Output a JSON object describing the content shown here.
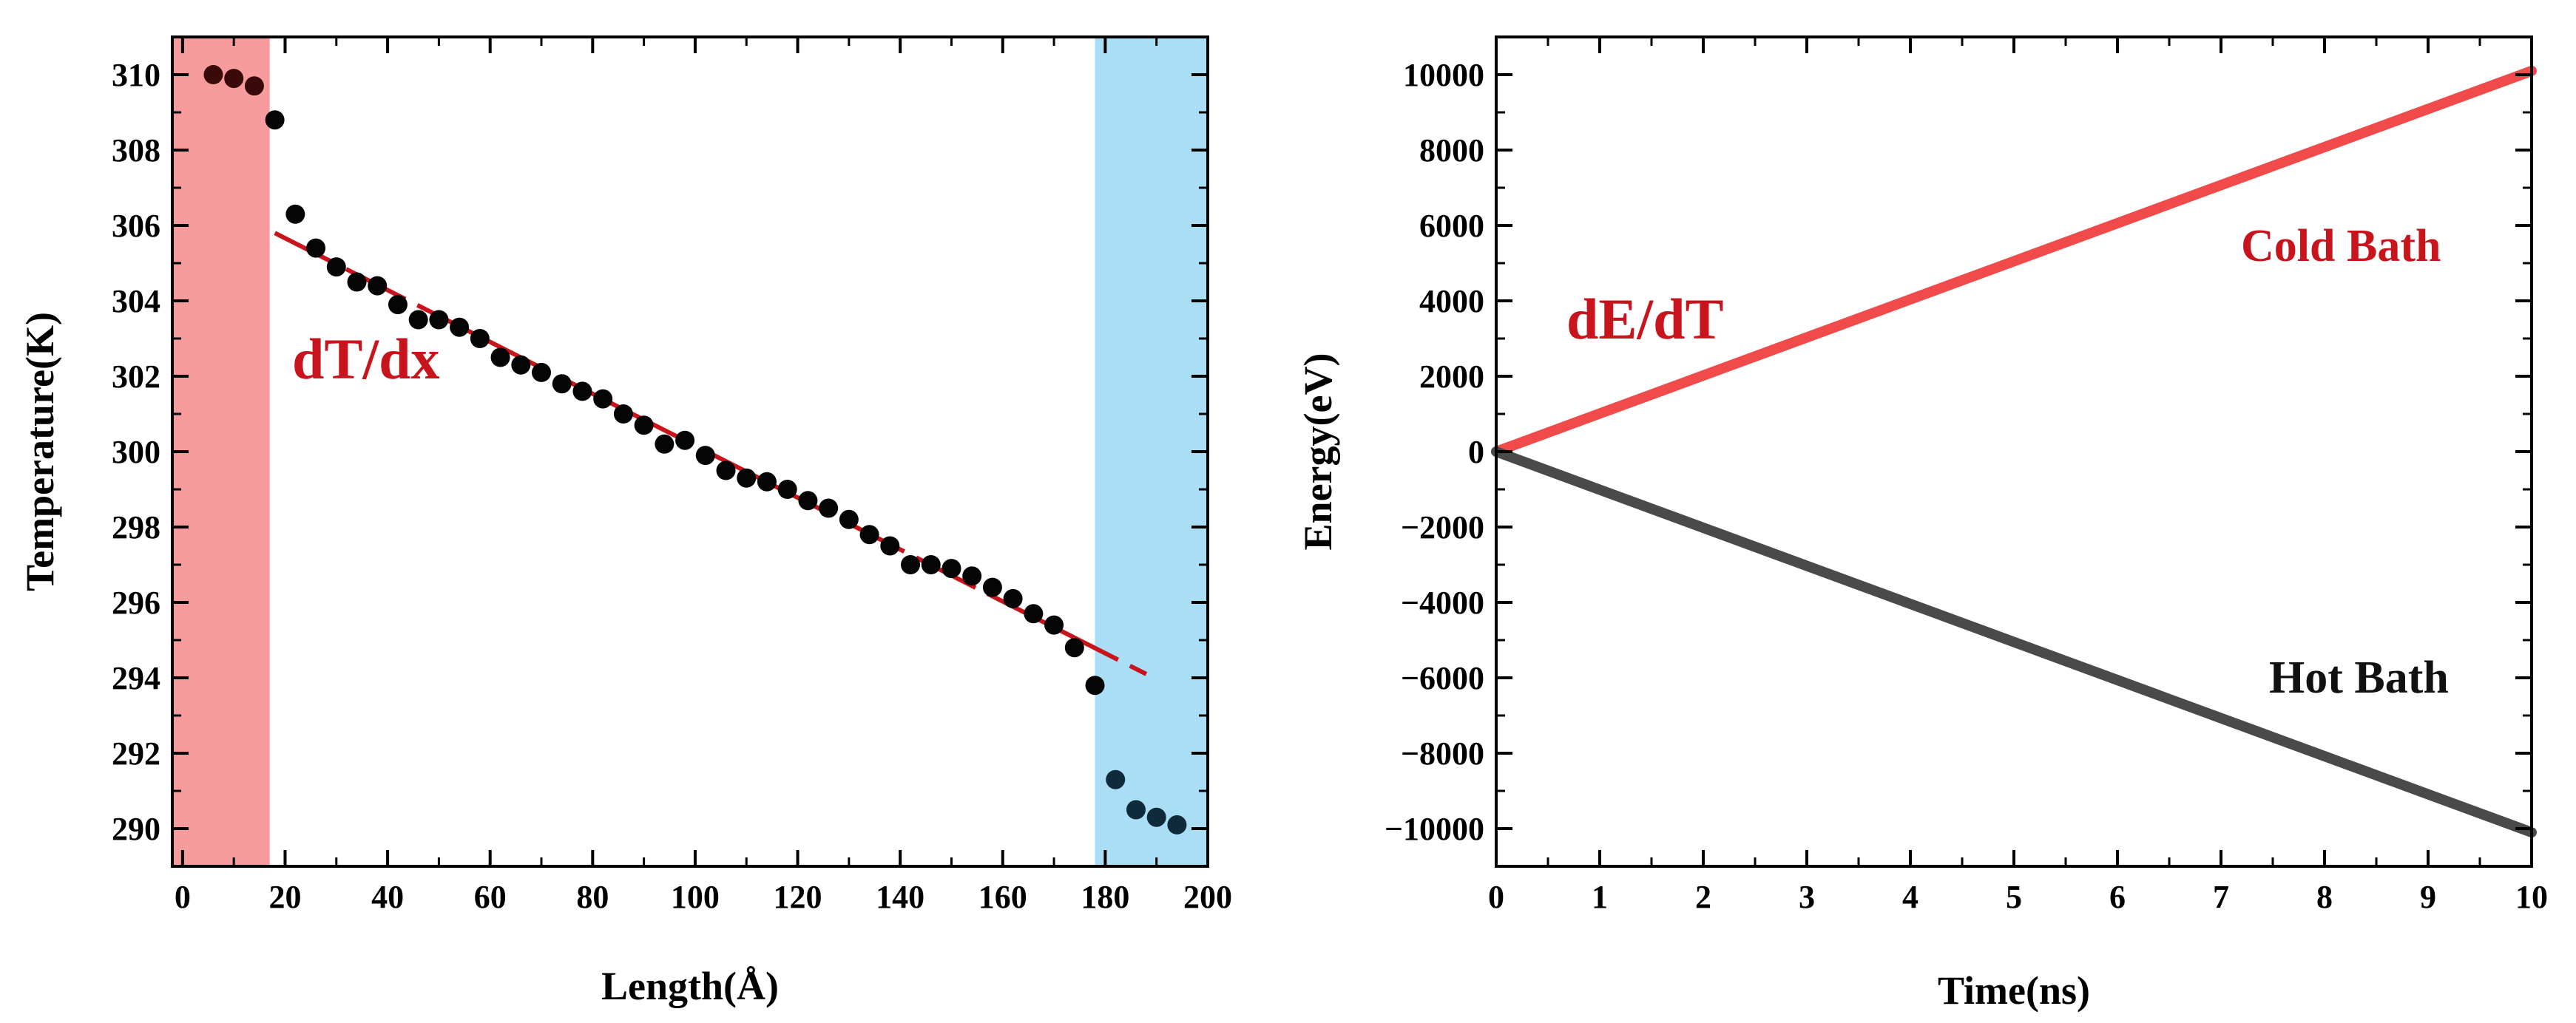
{
  "chart_data": [
    {
      "type": "scatter",
      "xlabel": "Length(Å)",
      "ylabel": "Temperature(K)",
      "xlim": [
        -2,
        200
      ],
      "ylim": [
        289,
        311
      ],
      "xticks": [
        0,
        20,
        40,
        60,
        80,
        100,
        120,
        140,
        160,
        180,
        200
      ],
      "yticks": [
        290,
        292,
        294,
        296,
        298,
        300,
        302,
        304,
        306,
        308,
        310
      ],
      "regions": [
        {
          "name": "hot-region",
          "x_range": [
            -2,
            17
          ],
          "color": "#f79c9c"
        },
        {
          "name": "cold-region",
          "x_range": [
            178,
            200
          ],
          "color": "#a9def5"
        }
      ],
      "series": [
        {
          "name": "temperature-profile",
          "x": [
            6,
            10,
            14,
            18,
            22,
            26,
            30,
            34,
            38,
            42,
            46,
            50,
            54,
            58,
            62,
            66,
            70,
            74,
            78,
            82,
            86,
            90,
            94,
            98,
            102,
            106,
            110,
            114,
            118,
            122,
            126,
            130,
            134,
            138,
            142,
            146,
            150,
            154,
            158,
            162,
            166,
            170,
            174,
            178,
            182,
            186,
            190,
            194
          ],
          "y": [
            310.0,
            309.9,
            309.7,
            308.8,
            306.3,
            305.4,
            304.9,
            304.5,
            304.4,
            303.9,
            303.5,
            303.5,
            303.3,
            303.0,
            302.5,
            302.3,
            302.1,
            301.8,
            301.6,
            301.4,
            301.0,
            300.7,
            300.2,
            300.3,
            299.9,
            299.5,
            299.3,
            299.2,
            299.0,
            298.7,
            298.5,
            298.2,
            297.8,
            297.5,
            297.0,
            297.0,
            296.9,
            296.7,
            296.4,
            296.1,
            295.7,
            295.4,
            294.8,
            293.8,
            291.3,
            290.5,
            290.3,
            290.1
          ]
        }
      ],
      "fit_line": {
        "x": [
          18,
          188
        ],
        "y": [
          305.8,
          294.1
        ],
        "color": "#c8141c"
      },
      "annotation": "dT/dx"
    },
    {
      "type": "line",
      "xlabel": "Time(ns)",
      "ylabel": "Energy(eV)",
      "xlim": [
        0,
        10
      ],
      "ylim": [
        -11000,
        11000
      ],
      "xticks": [
        0,
        1,
        2,
        3,
        4,
        5,
        6,
        7,
        8,
        9,
        10
      ],
      "yticks": [
        -10000,
        -8000,
        -6000,
        -4000,
        -2000,
        0,
        2000,
        4000,
        6000,
        8000,
        10000
      ],
      "series": [
        {
          "name": "Cold Bath",
          "x": [
            0,
            10
          ],
          "y": [
            0,
            10100
          ],
          "color": "#f04a4a"
        },
        {
          "name": "Hot Bath",
          "x": [
            0,
            10
          ],
          "y": [
            0,
            -10100
          ],
          "color": "#4a4a4a"
        }
      ],
      "annotations": {
        "slope": "dE/dT",
        "cold": "Cold Bath",
        "hot": "Hot Bath"
      }
    }
  ]
}
